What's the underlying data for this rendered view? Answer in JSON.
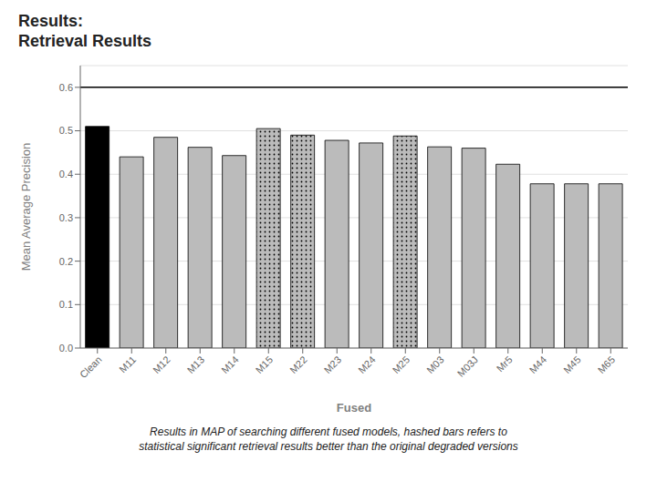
{
  "chart_data": {
    "type": "bar",
    "title": "Results:",
    "subtitle": "Retrieval Results",
    "caption": "Results in MAP of searching different fused models, hashed bars refers to\nstatistical significant retrieval results better than the original degraded versions",
    "xlabel": "Fused",
    "ylabel": "Mean Average Precision",
    "categories": [
      "Clean",
      "M11",
      "M12",
      "M13",
      "M14",
      "M15",
      "M22",
      "M23",
      "M24",
      "M25",
      "M03",
      "M03J",
      "Mr5",
      "M44",
      "M45",
      "M65"
    ],
    "values": [
      0.51,
      0.44,
      0.485,
      0.462,
      0.443,
      0.505,
      0.49,
      0.478,
      0.472,
      0.488,
      0.463,
      0.46,
      0.423,
      0.378,
      0.378,
      0.378
    ],
    "hatched": [
      false,
      false,
      false,
      false,
      false,
      true,
      true,
      false,
      false,
      true,
      false,
      false,
      false,
      false,
      false,
      false
    ],
    "colors": [
      "#000000",
      "#bbbbbb",
      "#bbbbbb",
      "#bbbbbb",
      "#bbbbbb",
      "#bbbbbb",
      "#bbbbbb",
      "#bbbbbb",
      "#bbbbbb",
      "#bbbbbb",
      "#bbbbbb",
      "#bbbbbb",
      "#bbbbbb",
      "#bbbbbb",
      "#bbbbbb",
      "#bbbbbb"
    ],
    "ylim": [
      0,
      0.65
    ],
    "yticks": [
      {
        "value": 0,
        "label": "0.0"
      },
      0.1,
      0.2,
      0.3,
      0.4,
      0.5,
      0.6
    ],
    "reference_line": 0.6,
    "grid": true
  }
}
